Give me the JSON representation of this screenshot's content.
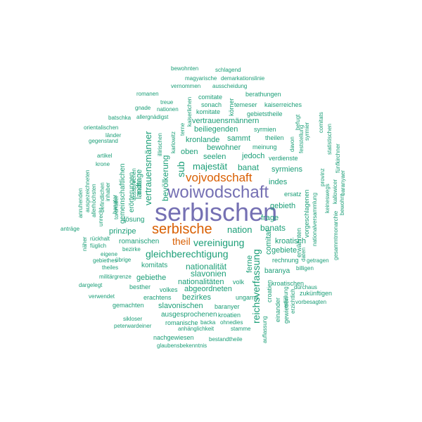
{
  "colors": {
    "primary": "#7570b3",
    "secondary": "#d95f02",
    "tertiary": "#1b9e77"
  },
  "words": [
    {
      "text": "serbischen",
      "color": "primary"
    },
    {
      "text": "woiwodschaft",
      "color": "primary"
    },
    {
      "text": "serbische",
      "color": "secondary"
    },
    {
      "text": "vojvodschaft",
      "color": "secondary"
    },
    {
      "text": "theil",
      "color": "secondary"
    },
    {
      "text": "gleichberechtigung",
      "color": "tertiary"
    },
    {
      "text": "vereinigung",
      "color": "tertiary"
    },
    {
      "text": "nation",
      "color": "tertiary"
    },
    {
      "text": "reichsverfassung",
      "color": "tertiary"
    },
    {
      "text": "vertrauensmänner",
      "color": "tertiary"
    },
    {
      "text": "majestät",
      "color": "tertiary"
    },
    {
      "text": "banat",
      "color": "tertiary"
    },
    {
      "text": "banats",
      "color": "tertiary"
    },
    {
      "text": "nationalität",
      "color": "tertiary"
    },
    {
      "text": "slavonien",
      "color": "tertiary"
    },
    {
      "text": "bevölkerung",
      "color": "tertiary"
    },
    {
      "text": "sub",
      "color": "tertiary"
    },
    {
      "text": "vertrauensmännern",
      "color": "tertiary"
    },
    {
      "text": "beiliegenden",
      "color": "tertiary"
    },
    {
      "text": "kronlande",
      "color": "tertiary"
    },
    {
      "text": "sammt",
      "color": "tertiary"
    },
    {
      "text": "bewohner",
      "color": "tertiary"
    },
    {
      "text": "jedoch",
      "color": "tertiary"
    },
    {
      "text": "seelen",
      "color": "tertiary"
    },
    {
      "text": "oben",
      "color": "tertiary"
    },
    {
      "text": "syrmiens",
      "color": "tertiary"
    },
    {
      "text": "indes",
      "color": "tertiary"
    },
    {
      "text": "gebieth",
      "color": "tertiary"
    },
    {
      "text": "frage",
      "color": "tertiary"
    },
    {
      "text": "kroatisch",
      "color": "tertiary"
    },
    {
      "text": "gebiete",
      "color": "tertiary"
    },
    {
      "text": "prinzipe",
      "color": "tertiary"
    },
    {
      "text": "romanischen",
      "color": "tertiary"
    },
    {
      "text": "ferne",
      "color": "tertiary"
    },
    {
      "text": "comitat",
      "color": "tertiary"
    },
    {
      "text": "gebiethe",
      "color": "tertiary"
    },
    {
      "text": "nationalitäten",
      "color": "tertiary"
    },
    {
      "text": "abgeordneten",
      "color": "tertiary"
    },
    {
      "text": "bezirkes",
      "color": "tertiary"
    },
    {
      "text": "slavonischen",
      "color": "tertiary"
    },
    {
      "text": "ausgesprochenen",
      "color": "tertiary"
    },
    {
      "text": "romanische",
      "color": "tertiary"
    },
    {
      "text": "baranya",
      "color": "tertiary"
    },
    {
      "text": "komitats",
      "color": "tertiary"
    },
    {
      "text": "gemeinschaftlichen",
      "color": "tertiary"
    },
    {
      "text": "landtage",
      "color": "tertiary"
    },
    {
      "text": "erörterungen",
      "color": "tertiary"
    },
    {
      "text": "halte",
      "color": "tertiary"
    },
    {
      "text": "lösung",
      "color": "tertiary"
    },
    {
      "text": "rechnung",
      "color": "tertiary"
    },
    {
      "text": "volk",
      "color": "tertiary"
    },
    {
      "text": "ungarns",
      "color": "tertiary"
    },
    {
      "text": "croatien",
      "color": "tertiary"
    },
    {
      "text": "kroatischen",
      "color": "tertiary"
    },
    {
      "text": "einander",
      "color": "tertiary"
    },
    {
      "text": "gewiesen",
      "color": "tertiary"
    },
    {
      "text": "erachtens",
      "color": "tertiary"
    },
    {
      "text": "volkes",
      "color": "tertiary"
    },
    {
      "text": "besther",
      "color": "tertiary"
    },
    {
      "text": "gemachten",
      "color": "tertiary"
    },
    {
      "text": "baranyer",
      "color": "tertiary"
    },
    {
      "text": "kroatien",
      "color": "tertiary"
    },
    {
      "text": "ohnedies",
      "color": "tertiary"
    },
    {
      "text": "backa",
      "color": "tertiary"
    },
    {
      "text": "stamme",
      "color": "tertiary"
    },
    {
      "text": "anhänglichkeit",
      "color": "tertiary"
    },
    {
      "text": "peterwardeiner",
      "color": "tertiary"
    },
    {
      "text": "sikloser",
      "color": "tertiary"
    },
    {
      "text": "nachgewiesen",
      "color": "tertiary"
    },
    {
      "text": "bestandtheile",
      "color": "tertiary"
    },
    {
      "text": "glaubensbekenntnis",
      "color": "tertiary"
    },
    {
      "text": "auflassung",
      "color": "tertiary"
    },
    {
      "text": "erfüllung",
      "color": "tertiary"
    },
    {
      "text": "erzichtlich",
      "color": "tertiary"
    },
    {
      "text": "zukünftigen",
      "color": "tertiary"
    },
    {
      "text": "vorbesagten",
      "color": "tertiary"
    },
    {
      "text": "durchaus",
      "color": "tertiary"
    },
    {
      "text": "billigen",
      "color": "tertiary"
    },
    {
      "text": "getragen",
      "color": "tertiary"
    },
    {
      "text": "daten",
      "color": "tertiary"
    },
    {
      "text": "erwähnten",
      "color": "tertiary"
    },
    {
      "text": "vorgeschlagenen",
      "color": "tertiary"
    },
    {
      "text": "nationalversammlung",
      "color": "tertiary"
    },
    {
      "text": "ersatz",
      "color": "tertiary"
    },
    {
      "text": "verdienste",
      "color": "tertiary"
    },
    {
      "text": "theilen",
      "color": "tertiary"
    },
    {
      "text": "syrmien",
      "color": "tertiary"
    },
    {
      "text": "syrmier",
      "color": "tertiary"
    },
    {
      "text": "davon",
      "color": "tertiary"
    },
    {
      "text": "befugt",
      "color": "tertiary"
    },
    {
      "text": "feststellung",
      "color": "tertiary"
    },
    {
      "text": "comitats",
      "color": "tertiary"
    },
    {
      "text": "statistischen",
      "color": "tertiary"
    },
    {
      "text": "fünfkirchner",
      "color": "tertiary"
    },
    {
      "text": "kallowicer",
      "color": "tertiary"
    },
    {
      "text": "bewohnt",
      "color": "tertiary"
    },
    {
      "text": "baranyaer",
      "color": "tertiary"
    },
    {
      "text": "provinz",
      "color": "tertiary"
    },
    {
      "text": "keineswegs",
      "color": "tertiary"
    },
    {
      "text": "gesammtmonarchie",
      "color": "tertiary"
    },
    {
      "text": "meinung",
      "color": "tertiary"
    },
    {
      "text": "gebietstheile",
      "color": "tertiary"
    },
    {
      "text": "kaiserreiches",
      "color": "tertiary"
    },
    {
      "text": "berathungen",
      "color": "tertiary"
    },
    {
      "text": "temeser",
      "color": "tertiary"
    },
    {
      "text": "körner",
      "color": "tertiary"
    },
    {
      "text": "komitate",
      "color": "tertiary"
    },
    {
      "text": "comitate",
      "color": "tertiary"
    },
    {
      "text": "sonach",
      "color": "tertiary"
    },
    {
      "text": "ausscheidung",
      "color": "tertiary"
    },
    {
      "text": "demarkationslinie",
      "color": "tertiary"
    },
    {
      "text": "schlagend",
      "color": "tertiary"
    },
    {
      "text": "bewohnten",
      "color": "tertiary"
    },
    {
      "text": "magyarische",
      "color": "tertiary"
    },
    {
      "text": "vernommen",
      "color": "tertiary"
    },
    {
      "text": "romanen",
      "color": "tertiary"
    },
    {
      "text": "treue",
      "color": "tertiary"
    },
    {
      "text": "gnade",
      "color": "tertiary"
    },
    {
      "text": "nationen",
      "color": "tertiary"
    },
    {
      "text": "kaiserlichen",
      "color": "tertiary"
    },
    {
      "text": "batschka",
      "color": "tertiary"
    },
    {
      "text": "allergnädigst",
      "color": "tertiary"
    },
    {
      "text": "orientalischen",
      "color": "tertiary"
    },
    {
      "text": "länder",
      "color": "tertiary"
    },
    {
      "text": "gegenstand",
      "color": "tertiary"
    },
    {
      "text": "illirischen",
      "color": "tertiary"
    },
    {
      "text": "karlowitz",
      "color": "tertiary"
    },
    {
      "text": "terne",
      "color": "tertiary"
    },
    {
      "text": "artikel",
      "color": "tertiary"
    },
    {
      "text": "krone",
      "color": "tertiary"
    },
    {
      "text": "allerhöchsten",
      "color": "tertiary"
    },
    {
      "text": "anruhenden",
      "color": "tertiary"
    },
    {
      "text": "ausgezeichneten",
      "color": "tertiary"
    },
    {
      "text": "befindlichen",
      "color": "tertiary"
    },
    {
      "text": "inhaber",
      "color": "tertiary"
    },
    {
      "text": "banater",
      "color": "tertiary"
    },
    {
      "text": "torontaler",
      "color": "tertiary"
    },
    {
      "text": "unrecht",
      "color": "tertiary"
    },
    {
      "text": "aussprechen",
      "color": "tertiary"
    },
    {
      "text": "anträge",
      "color": "tertiary"
    },
    {
      "text": "rückhalt",
      "color": "tertiary"
    },
    {
      "text": "füglich",
      "color": "tertiary"
    },
    {
      "text": "näher",
      "color": "tertiary"
    },
    {
      "text": "eigene",
      "color": "tertiary"
    },
    {
      "text": "bezirke",
      "color": "tertiary"
    },
    {
      "text": "übrige",
      "color": "tertiary"
    },
    {
      "text": "gebiethes",
      "color": "tertiary"
    },
    {
      "text": "theiles",
      "color": "tertiary"
    },
    {
      "text": "militärgrenze",
      "color": "tertiary"
    },
    {
      "text": "dargelegt",
      "color": "tertiary"
    },
    {
      "text": "verwendet",
      "color": "tertiary"
    }
  ]
}
